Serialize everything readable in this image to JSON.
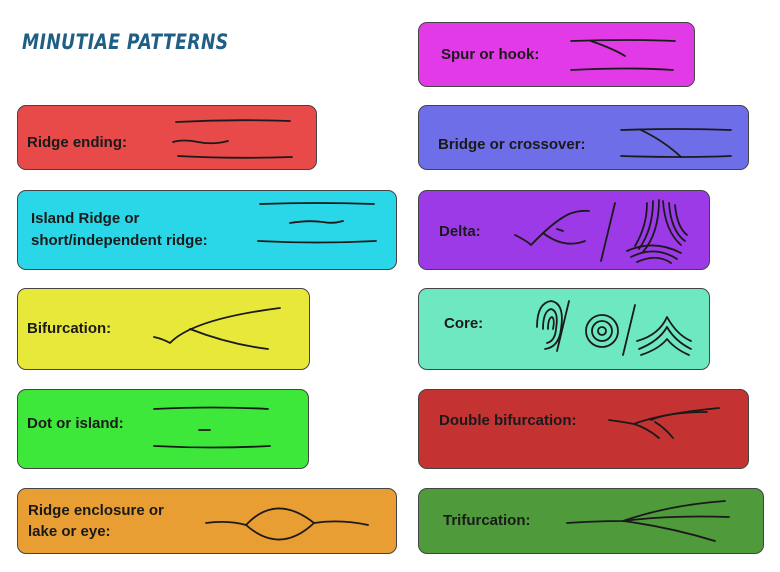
{
  "title": "MINUTIAE PATTERNS",
  "colors": {
    "ridge_ending": "#e84a4a",
    "island_ridge": "#2ad7e8",
    "bifurcation": "#e8e83a",
    "dot_or_island": "#3ee83a",
    "ridge_enclosure": "#e89e32",
    "spur_or_hook": "#e33ae8",
    "bridge_or_crossover": "#6e6ee8",
    "delta": "#9d3ae8",
    "core": "#6ee8c0",
    "double_bifurcation": "#c43232",
    "trifurcation": "#4f9a3a"
  },
  "patterns": {
    "ridge_ending": {
      "label": "Ridge ending:"
    },
    "island_ridge": {
      "label_line1": "Island Ridge or",
      "label_line2": "short/independent ridge:"
    },
    "bifurcation": {
      "label": "Bifurcation:"
    },
    "dot_or_island": {
      "label": "Dot or island:"
    },
    "ridge_enclosure": {
      "label_line1": "Ridge enclosure or",
      "label_line2": "lake or eye:"
    },
    "spur_or_hook": {
      "label": "Spur or hook:"
    },
    "bridge_or_crossover": {
      "label": "Bridge or crossover:"
    },
    "delta": {
      "label": "Delta:"
    },
    "core": {
      "label": "Core:"
    },
    "double_bifurcation": {
      "label": "Double bifurcation:"
    },
    "trifurcation": {
      "label": "Trifurcation:"
    }
  }
}
